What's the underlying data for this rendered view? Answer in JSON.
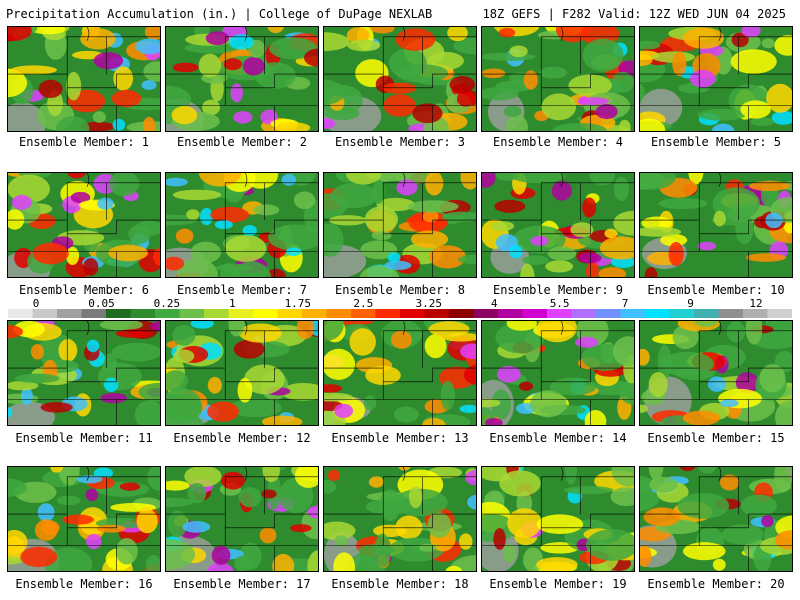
{
  "header": {
    "title_left": "Precipitation Accumulation (in.) | College of DuPage NEXLAB",
    "title_right": "18Z GEFS | F282 Valid: 12Z WED JUN 04 2025"
  },
  "colorbar": {
    "labels": [
      "0",
      "0.05",
      "0.25",
      "1",
      "1.75",
      "2.5",
      "3.25",
      "4",
      "5.5",
      "7",
      "9",
      "12"
    ],
    "colors": [
      "#e8e8e8",
      "#c8c8c8",
      "#a0a0a0",
      "#7a7a7a",
      "#1f6b1f",
      "#2e8b2e",
      "#3fa83f",
      "#6cc04a",
      "#a8d832",
      "#e8f020",
      "#ffff00",
      "#ffd700",
      "#ffb000",
      "#ff8c00",
      "#ff6000",
      "#ff2a00",
      "#e00000",
      "#b80000",
      "#8c0000",
      "#8c0060",
      "#b000a0",
      "#d000d0",
      "#e040ff",
      "#b070ff",
      "#7090ff",
      "#40c0ff",
      "#00e0ff",
      "#20d0d0",
      "#40b0b0",
      "#909090",
      "#b0b0b0",
      "#d0d0d0"
    ]
  },
  "members": [
    {
      "label": "Ensemble Member: 1"
    },
    {
      "label": "Ensemble Member: 2"
    },
    {
      "label": "Ensemble Member: 3"
    },
    {
      "label": "Ensemble Member: 4"
    },
    {
      "label": "Ensemble Member: 5"
    },
    {
      "label": "Ensemble Member: 6"
    },
    {
      "label": "Ensemble Member: 7"
    },
    {
      "label": "Ensemble Member: 8"
    },
    {
      "label": "Ensemble Member: 9"
    },
    {
      "label": "Ensemble Member: 10"
    },
    {
      "label": "Ensemble Member: 11"
    },
    {
      "label": "Ensemble Member: 12"
    },
    {
      "label": "Ensemble Member: 13"
    },
    {
      "label": "Ensemble Member: 14"
    },
    {
      "label": "Ensemble Member: 15"
    },
    {
      "label": "Ensemble Member: 16"
    },
    {
      "label": "Ensemble Member: 17"
    },
    {
      "label": "Ensemble Member: 18"
    },
    {
      "label": "Ensemble Member: 19"
    },
    {
      "label": "Ensemble Member: 20"
    }
  ]
}
